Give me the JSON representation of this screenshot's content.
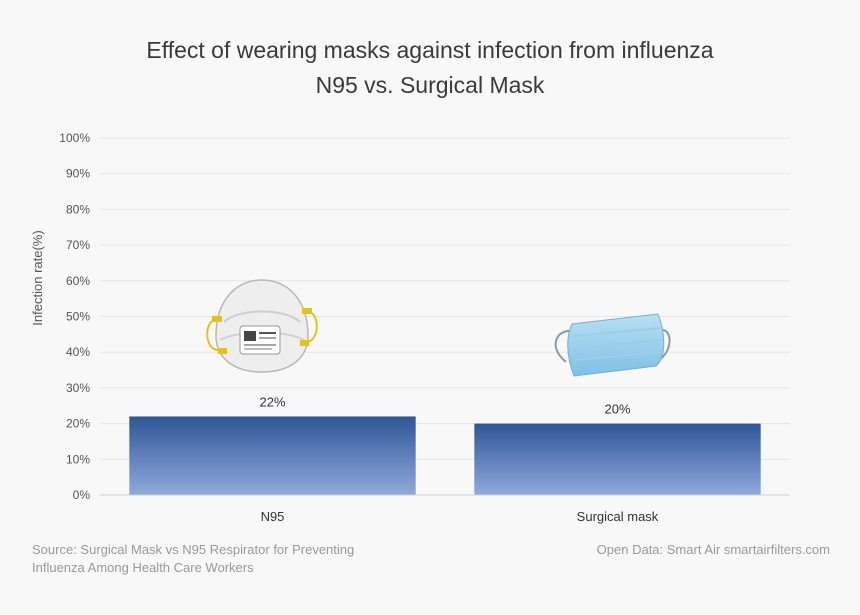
{
  "chart_data": {
    "type": "bar",
    "title_lines": [
      "Effect of wearing masks against infection from influenza",
      "N95 vs. Surgical Mask"
    ],
    "ylabel": "Infection rate(%)",
    "xlabel": "",
    "categories": [
      "N95",
      "Surgical mask"
    ],
    "values": [
      22,
      20
    ],
    "value_labels": [
      "22%",
      "20%"
    ],
    "ylim": [
      0,
      100
    ],
    "yticks": [
      0,
      10,
      20,
      30,
      40,
      50,
      60,
      70,
      80,
      90,
      100
    ],
    "ytick_labels": [
      "0%",
      "10%",
      "20%",
      "30%",
      "40%",
      "50%",
      "60%",
      "70%",
      "80%",
      "90%",
      "100%"
    ],
    "grid": true,
    "bar_color_top": "#2f5597",
    "bar_color_bottom": "#8faadc",
    "grid_color": "#e6e6e6",
    "images": [
      "n95-respirator-icon",
      "surgical-mask-icon"
    ]
  },
  "source": {
    "left": "Source: Surgical Mask vs N95 Respirator for Preventing Influenza Among Health Care Workers",
    "right": "Open Data: Smart Air smartairfilters.com"
  }
}
